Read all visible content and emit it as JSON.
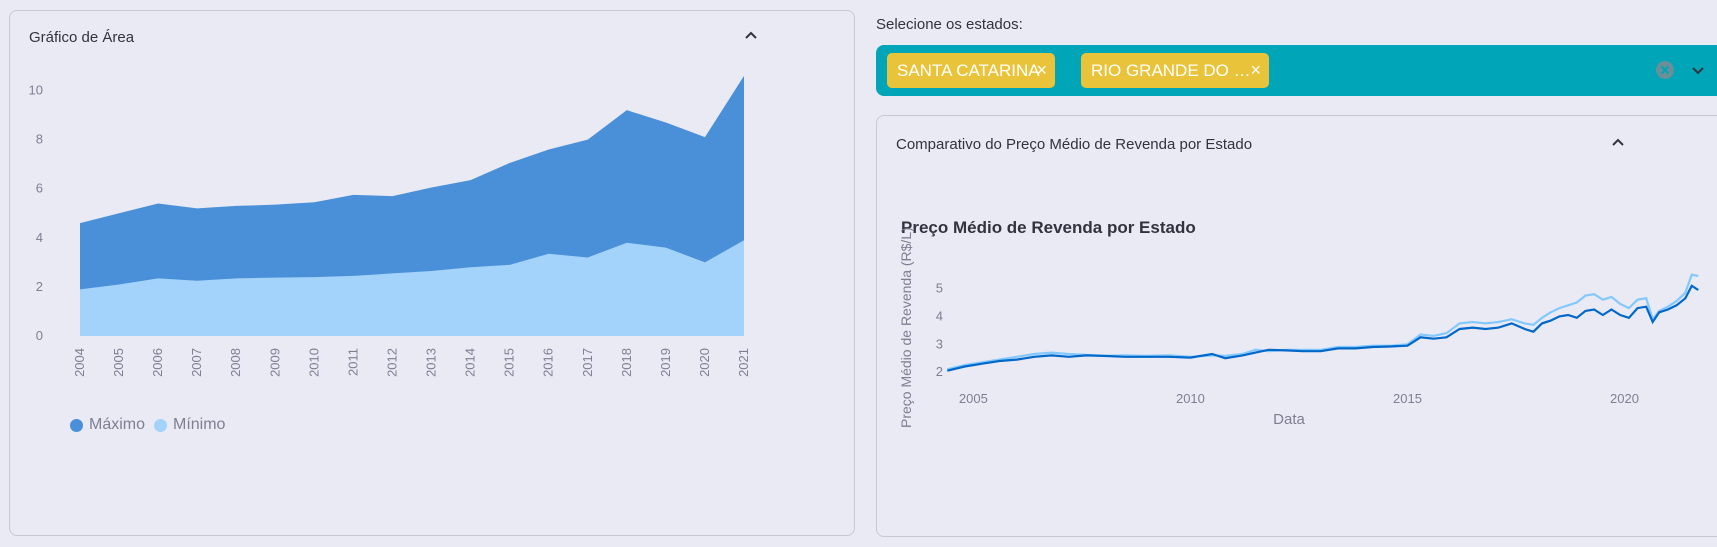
{
  "left_panel": {
    "title": "Gráfico de Área"
  },
  "filter": {
    "label": "Selecione os estados:",
    "chips": [
      "SANTA CATARINA",
      "RIO GRANDE DO …"
    ],
    "accent": "#00a6b8",
    "chip_color": "#e9c43a"
  },
  "right_panel": {
    "title": "Comparativo do Preço Médio de Revenda por Estado"
  },
  "chart_data": [
    {
      "type": "area",
      "title": "",
      "xlabel": "",
      "ylabel": "",
      "categories": [
        "2004",
        "2005",
        "2006",
        "2007",
        "2008",
        "2009",
        "2010",
        "2011",
        "2012",
        "2013",
        "2014",
        "2015",
        "2016",
        "2017",
        "2018",
        "2019",
        "2020",
        "2021"
      ],
      "ylim": [
        0,
        11
      ],
      "yticks": [
        "0",
        "2",
        "4",
        "6",
        "8",
        "10"
      ],
      "grid": false,
      "legend_placement": "bottom-left",
      "series": [
        {
          "name": "Máximo",
          "color": "#4a90d9",
          "values": [
            4.6,
            5.0,
            5.4,
            5.2,
            5.3,
            5.35,
            5.45,
            5.75,
            5.7,
            6.05,
            6.35,
            7.05,
            7.6,
            8.0,
            9.2,
            8.7,
            8.1,
            10.6
          ]
        },
        {
          "name": "Mínimo",
          "color": "#a3d3fb",
          "values": [
            1.9,
            2.1,
            2.35,
            2.25,
            2.35,
            2.38,
            2.4,
            2.45,
            2.55,
            2.65,
            2.8,
            2.9,
            3.35,
            3.2,
            3.8,
            3.6,
            3.0,
            3.9
          ]
        }
      ]
    },
    {
      "type": "line",
      "title": "Preço Médio de Revenda por Estado",
      "xlabel": "Data",
      "ylabel": "Preço Médio de Revenda (R$/L)",
      "xticks": [
        "2005",
        "2010",
        "2015",
        "2020"
      ],
      "yticks": [
        "2",
        "3",
        "4",
        "5"
      ],
      "xlim": [
        2004.3,
        2021.9
      ],
      "ylim": [
        1.5,
        6.1
      ],
      "grid": false,
      "series": [
        {
          "color": "#0068c9",
          "points": [
            [
              2004.4,
              2.05
            ],
            [
              2004.8,
              2.2
            ],
            [
              2005.2,
              2.3
            ],
            [
              2005.6,
              2.4
            ],
            [
              2006.0,
              2.45
            ],
            [
              2006.4,
              2.55
            ],
            [
              2006.8,
              2.6
            ],
            [
              2007.2,
              2.55
            ],
            [
              2007.6,
              2.6
            ],
            [
              2008.0,
              2.58
            ],
            [
              2008.5,
              2.55
            ],
            [
              2009.0,
              2.55
            ],
            [
              2009.5,
              2.55
            ],
            [
              2010.0,
              2.52
            ],
            [
              2010.5,
              2.65
            ],
            [
              2010.8,
              2.5
            ],
            [
              2011.2,
              2.6
            ],
            [
              2011.5,
              2.7
            ],
            [
              2011.8,
              2.8
            ],
            [
              2012.2,
              2.78
            ],
            [
              2012.6,
              2.75
            ],
            [
              2013.0,
              2.75
            ],
            [
              2013.4,
              2.85
            ],
            [
              2013.8,
              2.85
            ],
            [
              2014.2,
              2.9
            ],
            [
              2014.6,
              2.92
            ],
            [
              2015.0,
              2.95
            ],
            [
              2015.3,
              3.25
            ],
            [
              2015.6,
              3.2
            ],
            [
              2015.9,
              3.25
            ],
            [
              2016.2,
              3.55
            ],
            [
              2016.5,
              3.6
            ],
            [
              2016.8,
              3.55
            ],
            [
              2017.1,
              3.6
            ],
            [
              2017.4,
              3.75
            ],
            [
              2017.7,
              3.55
            ],
            [
              2017.9,
              3.45
            ],
            [
              2018.1,
              3.75
            ],
            [
              2018.3,
              3.85
            ],
            [
              2018.5,
              4.0
            ],
            [
              2018.7,
              4.05
            ],
            [
              2018.9,
              3.95
            ],
            [
              2019.1,
              4.2
            ],
            [
              2019.3,
              4.25
            ],
            [
              2019.5,
              4.05
            ],
            [
              2019.7,
              4.25
            ],
            [
              2019.9,
              4.05
            ],
            [
              2020.1,
              3.95
            ],
            [
              2020.3,
              4.3
            ],
            [
              2020.5,
              4.35
            ],
            [
              2020.65,
              3.8
            ],
            [
              2020.8,
              4.15
            ],
            [
              2021.0,
              4.25
            ],
            [
              2021.2,
              4.4
            ],
            [
              2021.4,
              4.65
            ],
            [
              2021.55,
              5.1
            ],
            [
              2021.7,
              4.95
            ]
          ]
        },
        {
          "color": "#83c9ff",
          "points": [
            [
              2004.4,
              2.1
            ],
            [
              2004.8,
              2.25
            ],
            [
              2005.2,
              2.35
            ],
            [
              2005.6,
              2.45
            ],
            [
              2006.0,
              2.55
            ],
            [
              2006.4,
              2.65
            ],
            [
              2006.8,
              2.7
            ],
            [
              2007.2,
              2.65
            ],
            [
              2007.6,
              2.62
            ],
            [
              2008.0,
              2.58
            ],
            [
              2008.5,
              2.6
            ],
            [
              2009.0,
              2.58
            ],
            [
              2009.5,
              2.6
            ],
            [
              2010.0,
              2.55
            ],
            [
              2010.5,
              2.6
            ],
            [
              2010.8,
              2.58
            ],
            [
              2011.2,
              2.65
            ],
            [
              2011.5,
              2.8
            ],
            [
              2011.8,
              2.75
            ],
            [
              2012.2,
              2.8
            ],
            [
              2012.6,
              2.8
            ],
            [
              2013.0,
              2.8
            ],
            [
              2013.4,
              2.9
            ],
            [
              2013.8,
              2.9
            ],
            [
              2014.2,
              2.95
            ],
            [
              2014.6,
              2.95
            ],
            [
              2015.0,
              3.0
            ],
            [
              2015.3,
              3.35
            ],
            [
              2015.6,
              3.3
            ],
            [
              2015.9,
              3.4
            ],
            [
              2016.2,
              3.75
            ],
            [
              2016.5,
              3.8
            ],
            [
              2016.8,
              3.75
            ],
            [
              2017.1,
              3.8
            ],
            [
              2017.4,
              3.9
            ],
            [
              2017.7,
              3.75
            ],
            [
              2017.9,
              3.7
            ],
            [
              2018.1,
              3.95
            ],
            [
              2018.3,
              4.15
            ],
            [
              2018.5,
              4.3
            ],
            [
              2018.7,
              4.4
            ],
            [
              2018.9,
              4.5
            ],
            [
              2019.1,
              4.75
            ],
            [
              2019.3,
              4.8
            ],
            [
              2019.5,
              4.6
            ],
            [
              2019.7,
              4.7
            ],
            [
              2019.9,
              4.45
            ],
            [
              2020.1,
              4.3
            ],
            [
              2020.3,
              4.6
            ],
            [
              2020.5,
              4.65
            ],
            [
              2020.65,
              3.9
            ],
            [
              2020.8,
              4.2
            ],
            [
              2021.0,
              4.35
            ],
            [
              2021.2,
              4.55
            ],
            [
              2021.4,
              4.85
            ],
            [
              2021.55,
              5.5
            ],
            [
              2021.7,
              5.45
            ]
          ]
        }
      ]
    }
  ]
}
